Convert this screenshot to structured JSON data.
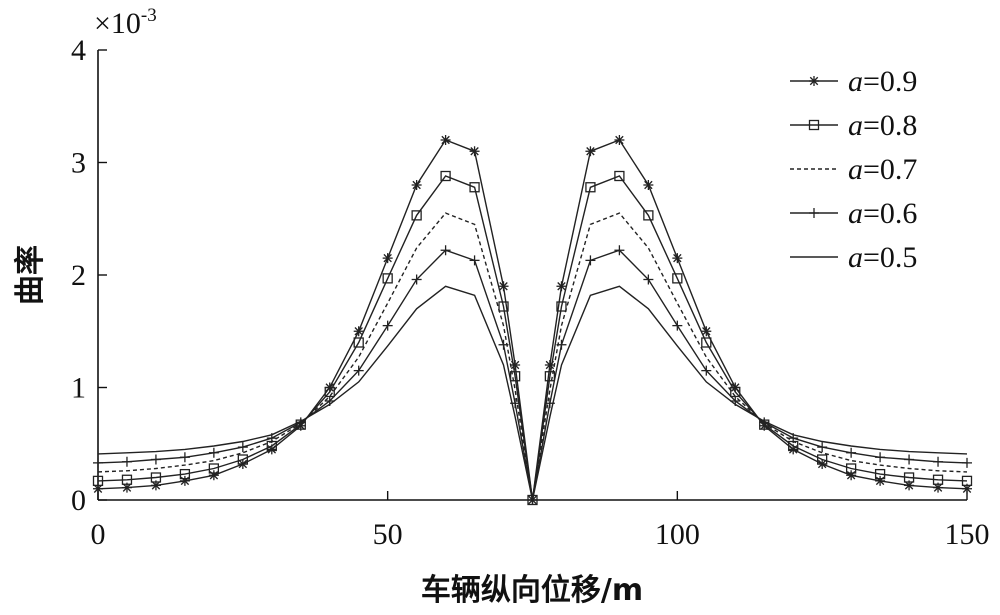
{
  "chart_data": {
    "type": "line",
    "xlabel": "车辆纵向位移/m",
    "ylabel": "曲率",
    "y_multiplier": "×10",
    "y_multiplier_exp": "-3",
    "xlim": [
      0,
      150
    ],
    "ylim": [
      0,
      4
    ],
    "x_ticks": [
      "0",
      "50",
      "100",
      "150"
    ],
    "y_ticks": [
      "0",
      "1",
      "2",
      "3",
      "4"
    ],
    "grid": false,
    "legend_position": "top-right",
    "legend_var": "a",
    "series": [
      {
        "name": "=0.9",
        "marker": "star",
        "dash": "",
        "x": [
          0,
          5,
          10,
          15,
          20,
          25,
          30,
          35,
          40,
          45,
          50,
          55,
          60,
          65,
          70,
          72,
          75,
          78,
          80,
          85,
          90,
          95,
          100,
          105,
          110,
          115,
          120,
          125,
          130,
          135,
          140,
          145,
          150
        ],
        "y": [
          0.1,
          0.11,
          0.13,
          0.17,
          0.22,
          0.32,
          0.45,
          0.66,
          1.0,
          1.5,
          2.15,
          2.8,
          3.2,
          3.1,
          1.9,
          1.2,
          0.0,
          1.2,
          1.9,
          3.1,
          3.2,
          2.8,
          2.15,
          1.5,
          1.0,
          0.66,
          0.45,
          0.32,
          0.22,
          0.17,
          0.13,
          0.11,
          0.1
        ]
      },
      {
        "name": "=0.8",
        "marker": "square",
        "dash": "",
        "x": [
          0,
          5,
          10,
          15,
          20,
          25,
          30,
          35,
          40,
          45,
          50,
          55,
          60,
          65,
          70,
          72,
          75,
          78,
          80,
          85,
          90,
          95,
          100,
          105,
          110,
          115,
          120,
          125,
          130,
          135,
          140,
          145,
          150
        ],
        "y": [
          0.17,
          0.18,
          0.2,
          0.23,
          0.28,
          0.36,
          0.48,
          0.67,
          0.96,
          1.4,
          1.97,
          2.53,
          2.88,
          2.78,
          1.72,
          1.1,
          0.0,
          1.1,
          1.72,
          2.78,
          2.88,
          2.53,
          1.97,
          1.4,
          0.96,
          0.67,
          0.48,
          0.36,
          0.28,
          0.23,
          0.2,
          0.18,
          0.17
        ]
      },
      {
        "name": "=0.7",
        "marker": "none",
        "dash": "4,3",
        "x": [
          0,
          5,
          10,
          15,
          20,
          25,
          30,
          35,
          40,
          45,
          50,
          55,
          60,
          65,
          70,
          72,
          75,
          78,
          80,
          85,
          90,
          95,
          100,
          105,
          110,
          115,
          120,
          125,
          130,
          135,
          140,
          145,
          150
        ],
        "y": [
          0.25,
          0.26,
          0.28,
          0.31,
          0.35,
          0.42,
          0.52,
          0.68,
          0.92,
          1.27,
          1.75,
          2.24,
          2.55,
          2.45,
          1.55,
          0.98,
          0.0,
          0.98,
          1.55,
          2.45,
          2.55,
          2.24,
          1.75,
          1.27,
          0.92,
          0.68,
          0.52,
          0.42,
          0.35,
          0.31,
          0.28,
          0.26,
          0.25
        ]
      },
      {
        "name": "=0.6",
        "marker": "plus",
        "dash": "",
        "x": [
          0,
          5,
          10,
          15,
          20,
          25,
          30,
          35,
          40,
          45,
          50,
          55,
          60,
          65,
          70,
          72,
          75,
          78,
          80,
          85,
          90,
          95,
          100,
          105,
          110,
          115,
          120,
          125,
          130,
          135,
          140,
          145,
          150
        ],
        "y": [
          0.33,
          0.34,
          0.36,
          0.38,
          0.42,
          0.47,
          0.55,
          0.69,
          0.88,
          1.15,
          1.55,
          1.96,
          2.22,
          2.13,
          1.38,
          0.86,
          0.0,
          0.86,
          1.38,
          2.13,
          2.22,
          1.96,
          1.55,
          1.15,
          0.88,
          0.69,
          0.55,
          0.47,
          0.42,
          0.38,
          0.36,
          0.34,
          0.33
        ]
      },
      {
        "name": "=0.5",
        "marker": "none",
        "dash": "",
        "x": [
          0,
          5,
          10,
          15,
          20,
          25,
          30,
          35,
          40,
          45,
          50,
          55,
          60,
          65,
          70,
          72,
          75,
          78,
          80,
          85,
          90,
          95,
          100,
          105,
          110,
          115,
          120,
          125,
          130,
          135,
          140,
          145,
          150
        ],
        "y": [
          0.41,
          0.42,
          0.43,
          0.45,
          0.48,
          0.52,
          0.58,
          0.7,
          0.85,
          1.05,
          1.37,
          1.7,
          1.9,
          1.82,
          1.2,
          0.74,
          0.0,
          0.74,
          1.2,
          1.82,
          1.9,
          1.7,
          1.37,
          1.05,
          0.85,
          0.7,
          0.58,
          0.52,
          0.48,
          0.45,
          0.43,
          0.42,
          0.41
        ]
      }
    ]
  }
}
